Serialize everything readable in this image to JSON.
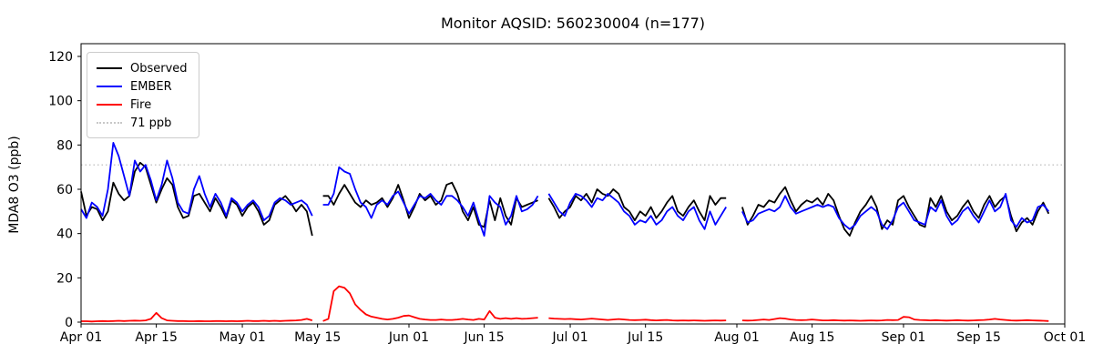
{
  "title": "Monitor AQSID: 560230004 (n=177)",
  "axes": {
    "ylabel": "MDA8 O3 (ppb)",
    "yticks": [
      0,
      20,
      40,
      60,
      80,
      100,
      120
    ],
    "xticks": [
      {
        "label": "Apr 01",
        "day": 0
      },
      {
        "label": "Apr 15",
        "day": 14
      },
      {
        "label": "May 01",
        "day": 30
      },
      {
        "label": "May 15",
        "day": 44
      },
      {
        "label": "Jun 01",
        "day": 61
      },
      {
        "label": "Jun 15",
        "day": 75
      },
      {
        "label": "Jul 01",
        "day": 91
      },
      {
        "label": "Jul 15",
        "day": 105
      },
      {
        "label": "Aug 01",
        "day": 122
      },
      {
        "label": "Aug 15",
        "day": 136
      },
      {
        "label": "Sep 01",
        "day": 153
      },
      {
        "label": "Sep 15",
        "day": 167
      },
      {
        "label": "Oct 01",
        "day": 183
      }
    ]
  },
  "legend": {
    "items": [
      {
        "label": "Observed",
        "color": "#000000",
        "style": "solid"
      },
      {
        "label": "EMBER",
        "color": "#0000ff",
        "style": "solid"
      },
      {
        "label": "Fire",
        "color": "#ff0000",
        "style": "solid"
      },
      {
        "label": "71 ppb",
        "color": "#c8c8c8",
        "style": "dotted"
      }
    ]
  },
  "chart_data": {
    "type": "line",
    "title": "Monitor AQSID: 560230004 (n=177)",
    "xlabel": "",
    "ylabel": "MDA8 O3 (ppb)",
    "ylim": [
      0,
      125
    ],
    "x_axis": "dates from Apr 01 to Oct 01, daily",
    "total_days": 183,
    "threshold": {
      "label": "71 ppb",
      "value": 71,
      "color": "#c8c8c8",
      "style": "dotted"
    },
    "series": [
      {
        "name": "Observed",
        "color": "#000000",
        "segments": [
          {
            "start_day": 0,
            "values": [
              59,
              48,
              52,
              51,
              46,
              50,
              63,
              58,
              55,
              57,
              68,
              72,
              70,
              62,
              54,
              60,
              65,
              62,
              52,
              47,
              48,
              57,
              58,
              54,
              50,
              56,
              52,
              47,
              55,
              53,
              48,
              52,
              54,
              50,
              44,
              46,
              53,
              55,
              57,
              54,
              50,
              53,
              50,
              39
            ]
          },
          {
            "start_day": 45,
            "values": [
              57,
              57,
              53,
              58,
              62,
              58,
              54,
              52,
              55,
              53,
              54,
              56,
              52,
              56,
              62,
              55,
              47,
              52,
              58,
              55,
              57,
              53,
              55,
              62,
              63,
              58,
              50,
              46,
              52,
              44,
              43,
              55,
              46,
              56,
              48,
              44,
              56,
              52,
              53,
              54,
              55
            ]
          },
          {
            "start_day": 87,
            "values": [
              56,
              52,
              47,
              50,
              52,
              57,
              55,
              58,
              54,
              60,
              58,
              57,
              60,
              58,
              52,
              50,
              46,
              50,
              48,
              52,
              47,
              50,
              54,
              57,
              50,
              48,
              52,
              55,
              50,
              46,
              57,
              53,
              56,
              56
            ]
          },
          {
            "start_day": 123,
            "values": [
              52,
              44,
              48,
              53,
              52,
              55,
              54,
              58,
              61,
              55,
              50,
              53,
              55,
              54,
              56,
              53,
              58,
              55,
              48,
              42,
              39,
              45,
              50,
              53,
              57,
              52,
              42,
              46,
              44,
              55,
              57,
              52,
              48,
              44,
              43,
              56,
              52,
              57,
              50,
              46,
              48,
              52,
              55,
              50,
              47,
              53,
              57,
              52,
              55,
              57,
              48,
              41,
              45,
              47,
              44,
              50,
              54,
              49
            ]
          }
        ]
      },
      {
        "name": "EMBER",
        "color": "#0000ff",
        "segments": [
          {
            "start_day": 0,
            "values": [
              51,
              47,
              54,
              52,
              48,
              60,
              81,
              75,
              66,
              57,
              73,
              68,
              71,
              64,
              55,
              62,
              73,
              65,
              54,
              50,
              49,
              60,
              66,
              58,
              52,
              58,
              54,
              48,
              56,
              54,
              50,
              53,
              55,
              52,
              46,
              48,
              54,
              56,
              55,
              53,
              54,
              55,
              53,
              48
            ]
          },
          {
            "start_day": 45,
            "values": [
              53,
              53,
              58,
              70,
              68,
              67,
              60,
              54,
              52,
              47,
              53,
              55,
              53,
              57,
              59,
              54,
              49,
              53,
              57,
              56,
              58,
              55,
              53,
              57,
              57,
              55,
              52,
              48,
              54,
              46,
              39,
              57,
              54,
              52,
              44,
              48,
              57,
              50,
              51,
              53,
              57
            ]
          },
          {
            "start_day": 87,
            "values": [
              58,
              54,
              50,
              48,
              54,
              58,
              57,
              55,
              52,
              56,
              55,
              58,
              56,
              54,
              50,
              48,
              44,
              46,
              45,
              48,
              44,
              46,
              50,
              52,
              48,
              46,
              50,
              52,
              46,
              42,
              50,
              44,
              48,
              52
            ]
          },
          {
            "start_day": 123,
            "values": [
              50,
              45,
              46,
              49,
              50,
              51,
              50,
              52,
              57,
              52,
              49,
              50,
              51,
              52,
              53,
              52,
              53,
              52,
              47,
              44,
              42,
              44,
              48,
              50,
              52,
              50,
              44,
              42,
              46,
              52,
              54,
              50,
              46,
              45,
              44,
              52,
              50,
              55,
              48,
              44,
              46,
              50,
              52,
              48,
              45,
              50,
              55,
              50,
              52,
              58,
              46,
              43,
              47,
              45,
              46,
              52,
              53,
              50
            ]
          }
        ]
      },
      {
        "name": "Fire",
        "color": "#ff0000",
        "segments": [
          {
            "start_day": 0,
            "values": [
              0.4,
              0.4,
              0.3,
              0.4,
              0.5,
              0.4,
              0.5,
              0.6,
              0.5,
              0.6,
              0.7,
              0.6,
              0.8,
              1.5,
              4.2,
              1.8,
              0.8,
              0.6,
              0.5,
              0.5,
              0.4,
              0.4,
              0.5,
              0.4,
              0.4,
              0.5,
              0.5,
              0.4,
              0.5,
              0.4,
              0.5,
              0.6,
              0.5,
              0.5,
              0.6,
              0.5,
              0.6,
              0.5,
              0.6,
              0.7,
              0.8,
              1.0,
              1.5,
              0.8
            ]
          },
          {
            "start_day": 45,
            "values": [
              0.5,
              1.5,
              14,
              16.2,
              15.5,
              13,
              8,
              5.5,
              3.5,
              2.5,
              2,
              1.5,
              1.2,
              1.5,
              2,
              2.8,
              3,
              2.2,
              1.5,
              1.2,
              1,
              1,
              1.2,
              1,
              1,
              1.2,
              1.5,
              1.2,
              1,
              1.5,
              1.2,
              5,
              2,
              1.5,
              1.8,
              1.5,
              1.8,
              1.5,
              1.6,
              1.8,
              2
            ]
          },
          {
            "start_day": 87,
            "values": [
              1.8,
              1.6,
              1.5,
              1.4,
              1.5,
              1.3,
              1.2,
              1.4,
              1.6,
              1.4,
              1.2,
              1.0,
              1.2,
              1.4,
              1.2,
              1.0,
              0.9,
              1.0,
              1.1,
              0.9,
              0.8,
              0.9,
              1.0,
              0.8,
              0.7,
              0.8,
              0.7,
              0.8,
              0.7,
              0.6,
              0.7,
              0.8,
              0.7,
              0.8
            ]
          },
          {
            "start_day": 123,
            "values": [
              0.8,
              0.7,
              0.8,
              1.0,
              1.2,
              1.0,
              1.4,
              1.8,
              1.6,
              1.2,
              1.0,
              0.9,
              1.0,
              1.2,
              1.0,
              0.8,
              0.8,
              0.9,
              0.8,
              0.7,
              0.8,
              0.7,
              0.6,
              0.7,
              0.8,
              0.7,
              0.8,
              1.0,
              0.9,
              1.0,
              2.4,
              2.2,
              1.2,
              1.0,
              0.9,
              0.8,
              0.9,
              0.8,
              0.7,
              0.8,
              0.9,
              0.8,
              0.7,
              0.8,
              0.9,
              1.0,
              1.2,
              1.5,
              1.2,
              1.0,
              0.8,
              0.7,
              0.8,
              0.9,
              0.8,
              0.7,
              0.6,
              0.5
            ]
          }
        ]
      }
    ]
  }
}
